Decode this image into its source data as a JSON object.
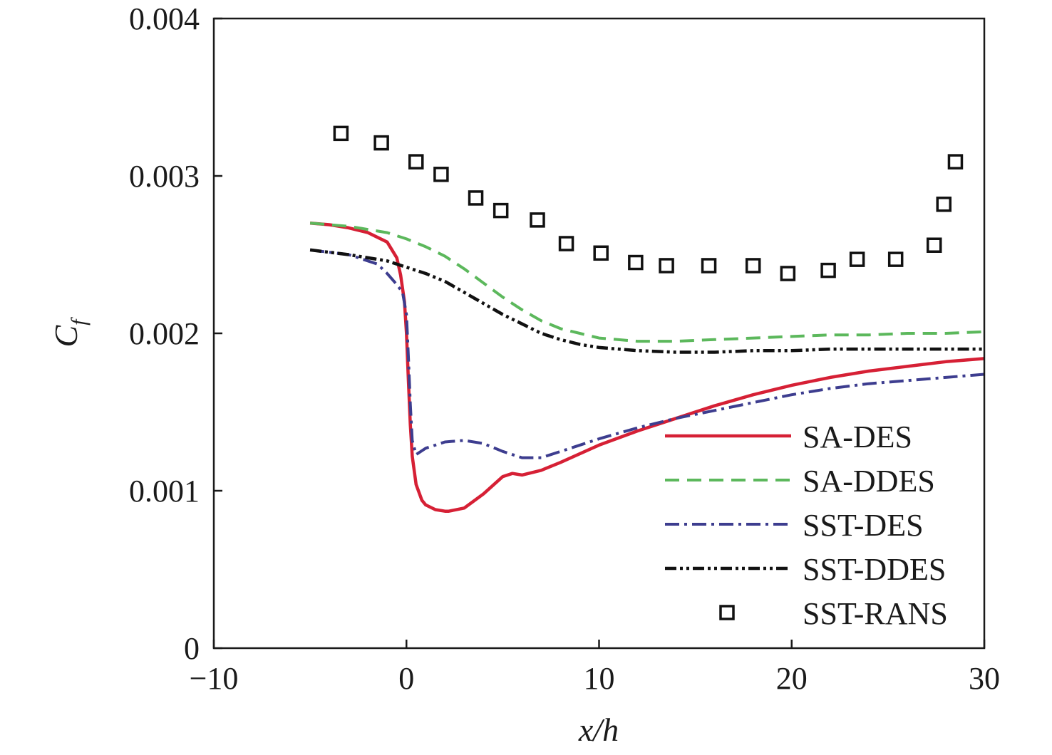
{
  "chart_data": {
    "type": "line",
    "xlabel": "x/h",
    "ylabel": {
      "main": "C",
      "sub": "f"
    },
    "xlim": [
      -10,
      30
    ],
    "ylim": [
      0,
      0.004
    ],
    "xticks": [
      -10,
      0,
      10,
      20,
      30
    ],
    "xtick_labels": [
      "−10",
      "0",
      "10",
      "20",
      "30"
    ],
    "yticks": [
      0,
      0.001,
      0.002,
      0.003,
      0.004
    ],
    "ytick_labels": [
      "0",
      "0.001",
      "0.002",
      "0.003",
      "0.004"
    ],
    "grid": false,
    "legend_position": "lower-right",
    "series": [
      {
        "name": "SA-DES",
        "style": "solid",
        "color": "#d62035",
        "x": [
          -5,
          -4,
          -3,
          -2,
          -1,
          -0.5,
          -0.3,
          -0.1,
          0,
          0.1,
          0.2,
          0.3,
          0.5,
          0.8,
          1,
          1.5,
          2,
          2.2,
          3,
          4,
          5,
          5.5,
          6,
          7,
          8,
          10,
          12,
          14,
          16,
          18,
          20,
          22,
          24,
          26,
          28,
          30
        ],
        "y": [
          0.0027,
          0.00269,
          0.00267,
          0.00264,
          0.00258,
          0.00248,
          0.00237,
          0.0022,
          0.002,
          0.0017,
          0.00142,
          0.00122,
          0.00104,
          0.00094,
          0.00091,
          0.00088,
          0.00087,
          0.00087,
          0.00089,
          0.00098,
          0.00109,
          0.00111,
          0.0011,
          0.00113,
          0.00118,
          0.00129,
          0.00138,
          0.00146,
          0.00154,
          0.00161,
          0.00167,
          0.00172,
          0.00176,
          0.00179,
          0.00182,
          0.00184
        ]
      },
      {
        "name": "SA-DDES",
        "style": "dashed",
        "color": "#5cb85c",
        "x": [
          -5,
          -3,
          -1,
          0,
          1,
          2,
          3,
          4,
          5,
          6,
          7,
          8,
          9,
          10,
          12,
          14,
          16,
          18,
          20,
          22,
          24,
          26,
          28,
          30
        ],
        "y": [
          0.0027,
          0.00268,
          0.00264,
          0.0026,
          0.00255,
          0.00249,
          0.00241,
          0.00232,
          0.00223,
          0.00215,
          0.00208,
          0.00203,
          0.002,
          0.00197,
          0.00195,
          0.00195,
          0.00196,
          0.00197,
          0.00198,
          0.00199,
          0.00199,
          0.002,
          0.002,
          0.00201
        ]
      },
      {
        "name": "SST-DES",
        "style": "dash-dot",
        "color": "#3d3d8f",
        "x": [
          -5,
          -3,
          -1.5,
          -1,
          -0.5,
          -0.2,
          0,
          0.1,
          0.2,
          0.3,
          0.5,
          1,
          2,
          3,
          4,
          5,
          6,
          7,
          8,
          10,
          12,
          14,
          16,
          18,
          20,
          22,
          24,
          26,
          28,
          30
        ],
        "y": [
          0.00253,
          0.0025,
          0.00244,
          0.00238,
          0.00231,
          0.00226,
          0.00212,
          0.00185,
          0.00155,
          0.00132,
          0.00123,
          0.00127,
          0.00131,
          0.00132,
          0.0013,
          0.00125,
          0.00121,
          0.00121,
          0.00125,
          0.00133,
          0.0014,
          0.00146,
          0.00151,
          0.00156,
          0.00161,
          0.00165,
          0.00168,
          0.0017,
          0.00172,
          0.00174
        ]
      },
      {
        "name": "SST-DDES",
        "style": "dash-dot-dot",
        "color": "#111111",
        "x": [
          -5,
          -3,
          -1,
          0,
          1,
          2,
          3,
          4,
          5,
          6,
          7,
          8,
          9,
          10,
          12,
          14,
          16,
          18,
          20,
          22,
          24,
          26,
          28,
          30
        ],
        "y": [
          0.00253,
          0.0025,
          0.00246,
          0.00242,
          0.00238,
          0.00233,
          0.00226,
          0.00219,
          0.00212,
          0.00206,
          0.002,
          0.00196,
          0.00193,
          0.00191,
          0.00189,
          0.00188,
          0.00188,
          0.00189,
          0.00189,
          0.0019,
          0.0019,
          0.0019,
          0.0019,
          0.0019
        ]
      },
      {
        "name": "SST-RANS",
        "style": "markers",
        "color": "#111111",
        "x": [
          -3.4,
          -1.3,
          0.5,
          1.8,
          3.6,
          4.9,
          6.8,
          8.3,
          10.1,
          11.9,
          13.5,
          15.7,
          18,
          19.8,
          21.9,
          23.4,
          25.4,
          27.4,
          27.9,
          28.5
        ],
        "y": [
          0.00327,
          0.00321,
          0.00309,
          0.00301,
          0.00286,
          0.00278,
          0.00272,
          0.00257,
          0.00251,
          0.00245,
          0.00243,
          0.00243,
          0.00243,
          0.00238,
          0.0024,
          0.00247,
          0.00247,
          0.00256,
          0.00282,
          0.00309
        ]
      }
    ]
  }
}
